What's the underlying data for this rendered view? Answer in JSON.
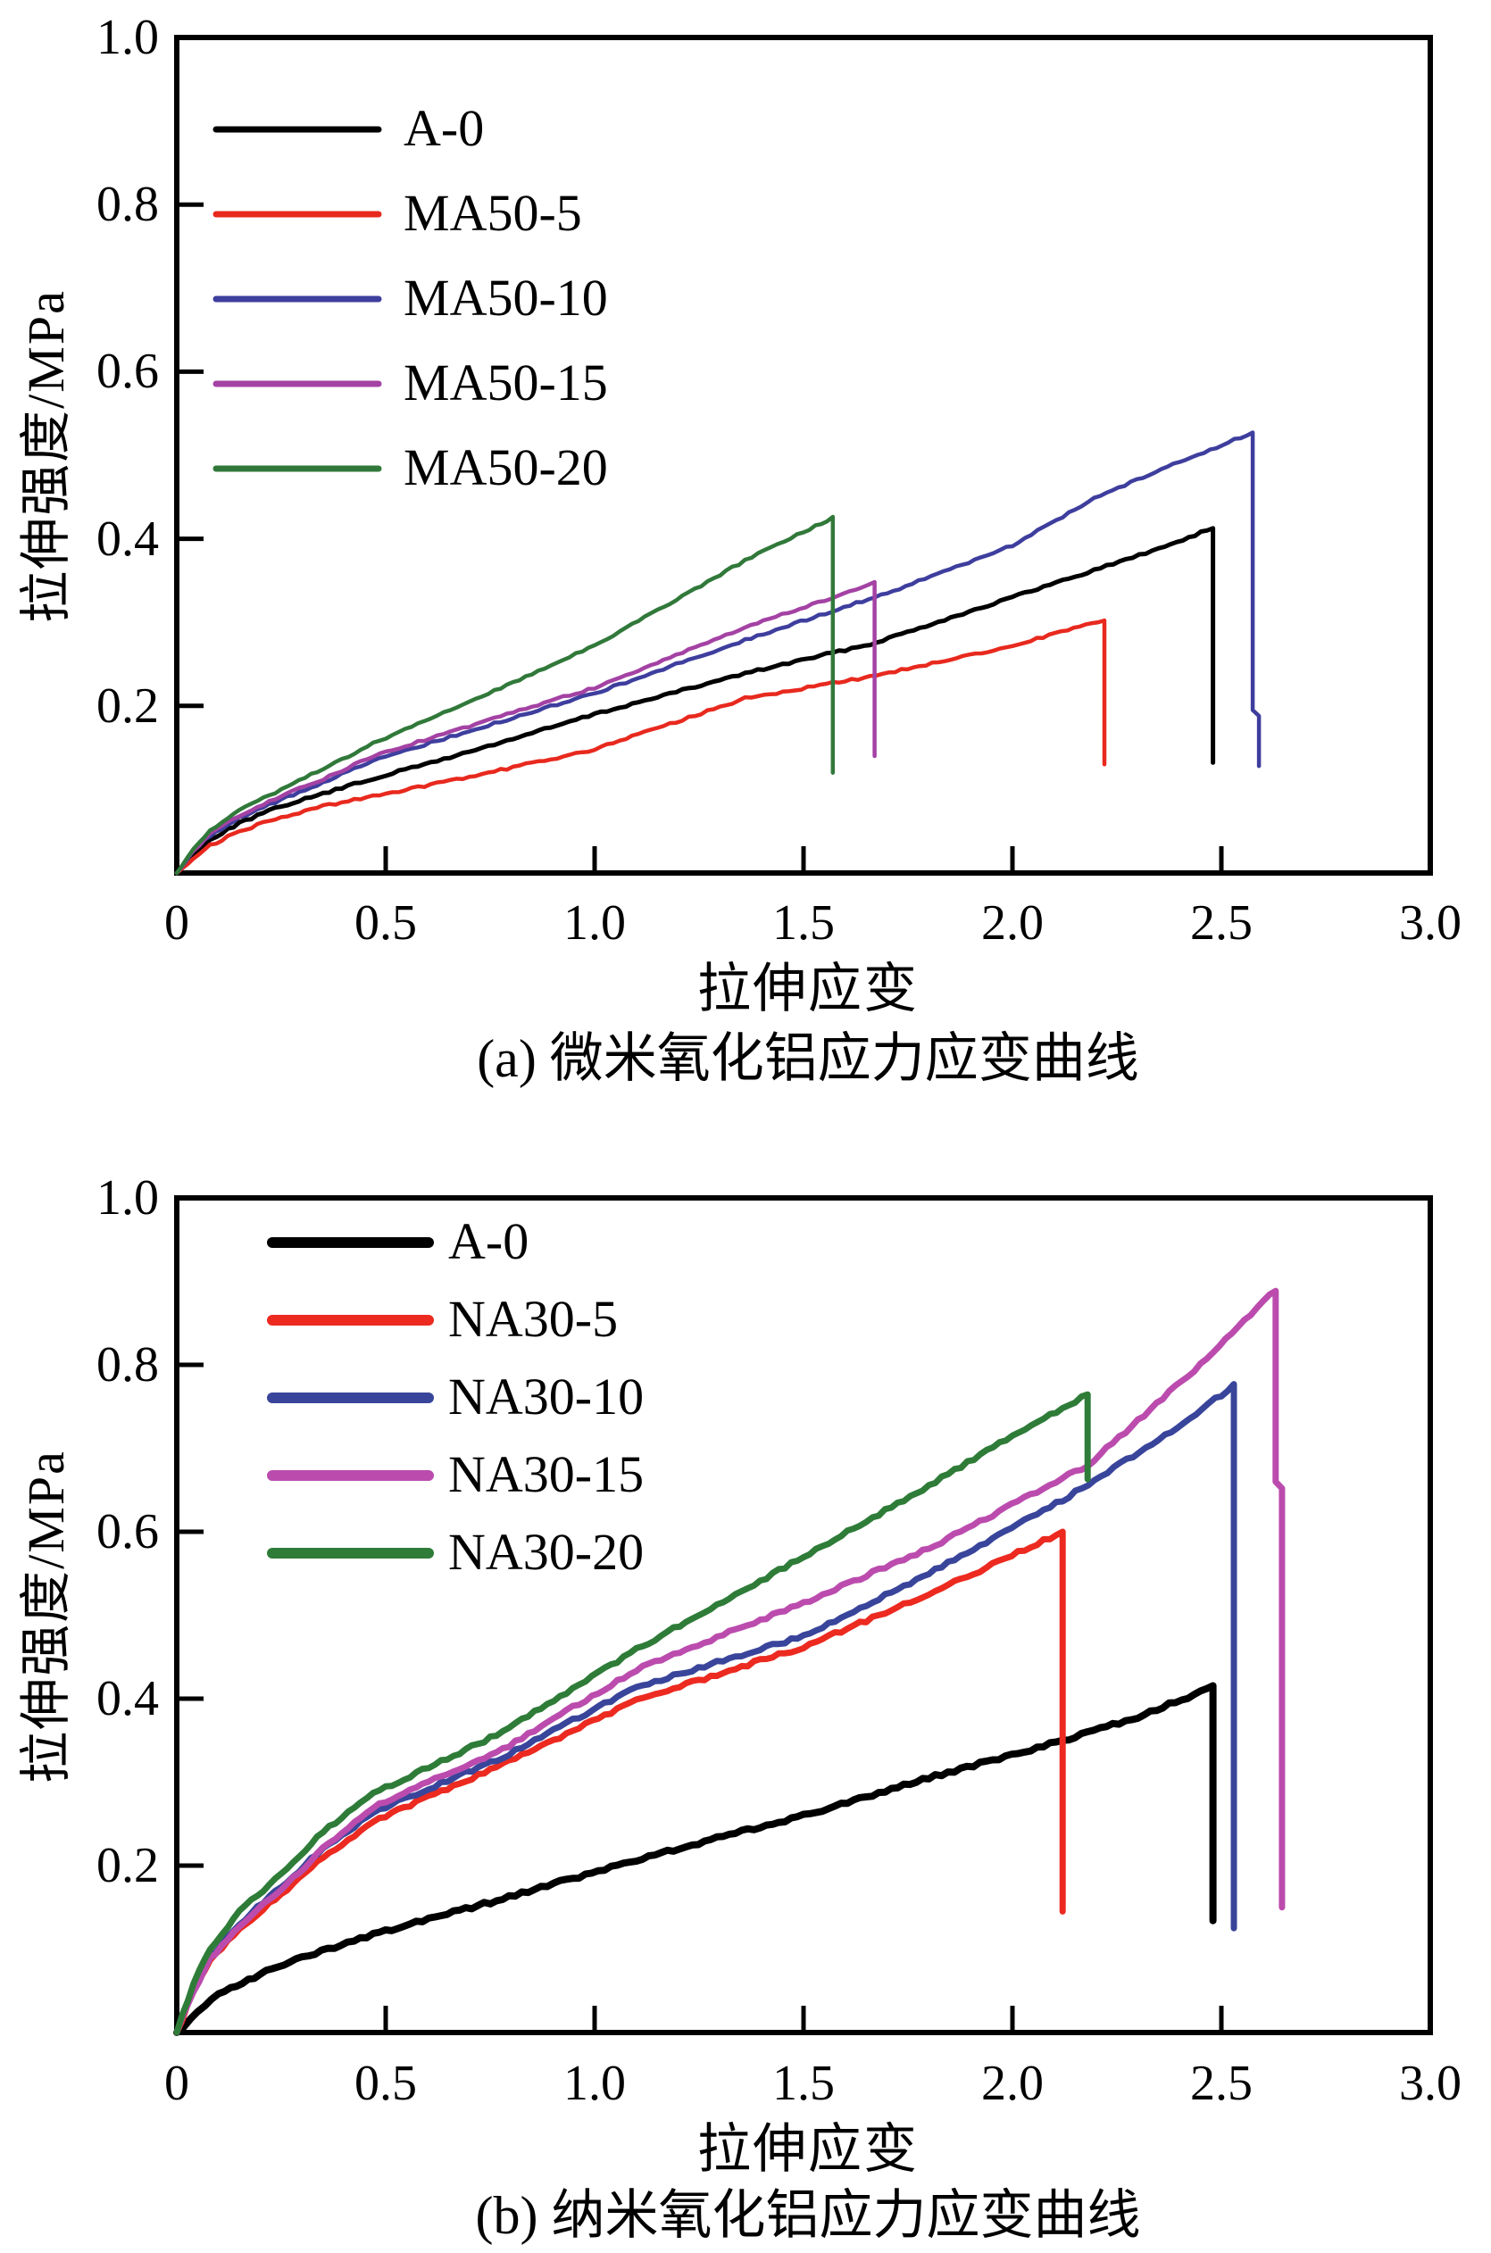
{
  "figure_title": "",
  "chart_data": [
    {
      "id": "a",
      "type": "line",
      "caption": "(a) 微米氧化铝应力应变曲线",
      "xlabel": "拉伸应变",
      "ylabel": "拉伸强度/MPa",
      "xlim": [
        0,
        3.0
      ],
      "ylim": [
        0,
        1.0
      ],
      "grid": false,
      "legend_position": "upper-left",
      "x_ticks": [
        0.5,
        1.0,
        1.5,
        2.0,
        2.5
      ],
      "y_ticks": [
        0.2,
        0.4,
        0.6,
        0.8
      ],
      "x_tick_labels": [
        {
          "v": 0,
          "t": "0"
        },
        {
          "v": 0.5,
          "t": "0.5"
        },
        {
          "v": 1.0,
          "t": "1.0"
        },
        {
          "v": 1.5,
          "t": "1.5"
        },
        {
          "v": 2.0,
          "t": "2.0"
        },
        {
          "v": 2.5,
          "t": "2.5"
        },
        {
          "v": 3.0,
          "t": "3.0"
        }
      ],
      "y_tick_labels": [
        {
          "v": 1.0,
          "t": "1.0"
        },
        {
          "v": 0.8,
          "t": "0.8"
        },
        {
          "v": 0.6,
          "t": "0.6"
        },
        {
          "v": 0.4,
          "t": "0.4"
        },
        {
          "v": 0.2,
          "t": "0.2"
        }
      ],
      "series": [
        {
          "name": "A-0",
          "color": "#000000",
          "w": 5,
          "peak_strain": 2.48,
          "peak_stress": 0.41,
          "points": [
            [
              0,
              0
            ],
            [
              0.04,
              0.022
            ],
            [
              0.08,
              0.04
            ],
            [
              0.15,
              0.06
            ],
            [
              0.25,
              0.08
            ],
            [
              0.35,
              0.095
            ],
            [
              0.47,
              0.113
            ],
            [
              0.7,
              0.145
            ],
            [
              1.0,
              0.19
            ],
            [
              1.36,
              0.239
            ],
            [
              1.66,
              0.274
            ],
            [
              2.0,
              0.33
            ],
            [
              2.21,
              0.365
            ],
            [
              2.35,
              0.388
            ],
            [
              2.48,
              0.413
            ],
            [
              2.48,
              0.132
            ]
          ]
        },
        {
          "name": "MA50-5",
          "color": "#e8291e",
          "w": 4.5,
          "peak_strain": 2.22,
          "peak_stress": 0.3,
          "points": [
            [
              0,
              0
            ],
            [
              0.04,
              0.018
            ],
            [
              0.08,
              0.033
            ],
            [
              0.15,
              0.05
            ],
            [
              0.25,
              0.067
            ],
            [
              0.35,
              0.08
            ],
            [
              0.47,
              0.092
            ],
            [
              0.7,
              0.115
            ],
            [
              1.0,
              0.148
            ],
            [
              1.36,
              0.209
            ],
            [
              1.66,
              0.235
            ],
            [
              2.0,
              0.272
            ],
            [
              2.22,
              0.303
            ],
            [
              2.22,
              0.13
            ]
          ]
        },
        {
          "name": "MA50-10",
          "color": "#3e3e9e",
          "w": 4.5,
          "peak_strain": 2.57,
          "peak_stress": 0.53,
          "points": [
            [
              0,
              0
            ],
            [
              0.04,
              0.026
            ],
            [
              0.08,
              0.045
            ],
            [
              0.15,
              0.066
            ],
            [
              0.25,
              0.088
            ],
            [
              0.35,
              0.108
            ],
            [
              0.47,
              0.135
            ],
            [
              0.7,
              0.17
            ],
            [
              1.0,
              0.215
            ],
            [
              1.36,
              0.279
            ],
            [
              1.7,
              0.335
            ],
            [
              2.0,
              0.392
            ],
            [
              2.21,
              0.452
            ],
            [
              2.4,
              0.492
            ],
            [
              2.575,
              0.527
            ],
            [
              2.575,
              0.195
            ],
            [
              2.59,
              0.188
            ],
            [
              2.59,
              0.128
            ]
          ]
        },
        {
          "name": "MA50-15",
          "color": "#a442a4",
          "w": 4.5,
          "peak_strain": 1.67,
          "peak_stress": 0.35,
          "points": [
            [
              0,
              0
            ],
            [
              0.04,
              0.027
            ],
            [
              0.08,
              0.047
            ],
            [
              0.15,
              0.069
            ],
            [
              0.25,
              0.092
            ],
            [
              0.35,
              0.112
            ],
            [
              0.47,
              0.14
            ],
            [
              0.7,
              0.176
            ],
            [
              1.0,
              0.222
            ],
            [
              1.36,
              0.294
            ],
            [
              1.55,
              0.326
            ],
            [
              1.67,
              0.347
            ],
            [
              1.67,
              0.14
            ]
          ]
        },
        {
          "name": "MA50-20",
          "color": "#31793a",
          "w": 4.5,
          "peak_strain": 1.57,
          "peak_stress": 0.42,
          "points": [
            [
              0,
              0
            ],
            [
              0.04,
              0.03
            ],
            [
              0.08,
              0.051
            ],
            [
              0.15,
              0.076
            ],
            [
              0.25,
              0.1
            ],
            [
              0.35,
              0.125
            ],
            [
              0.47,
              0.155
            ],
            [
              0.7,
              0.205
            ],
            [
              1.0,
              0.272
            ],
            [
              1.36,
              0.374
            ],
            [
              1.5,
              0.408
            ],
            [
              1.57,
              0.425
            ],
            [
              1.57,
              0.12
            ]
          ]
        }
      ]
    },
    {
      "id": "b",
      "type": "line",
      "caption": "(b) 纳米氧化铝应力应变曲线",
      "xlabel": "拉伸应变",
      "ylabel": "拉伸强度/MPa",
      "xlim": [
        0,
        3.0
      ],
      "ylim": [
        0,
        1.0
      ],
      "grid": false,
      "legend_position": "upper-left",
      "x_ticks": [
        0.5,
        1.0,
        1.5,
        2.0,
        2.5
      ],
      "y_ticks": [
        0.2,
        0.4,
        0.6,
        0.8
      ],
      "x_tick_labels": [
        {
          "v": 0,
          "t": "0"
        },
        {
          "v": 0.5,
          "t": "0.5"
        },
        {
          "v": 1.0,
          "t": "1.0"
        },
        {
          "v": 1.5,
          "t": "1.5"
        },
        {
          "v": 2.0,
          "t": "2.0"
        },
        {
          "v": 2.5,
          "t": "2.5"
        },
        {
          "v": 3.0,
          "t": "3.0"
        }
      ],
      "y_tick_labels": [
        {
          "v": 1.0,
          "t": "1.0"
        },
        {
          "v": 0.8,
          "t": "0.8"
        },
        {
          "v": 0.6,
          "t": "0.6"
        },
        {
          "v": 0.4,
          "t": "0.4"
        },
        {
          "v": 0.2,
          "t": "0.2"
        }
      ],
      "series": [
        {
          "name": "A-0",
          "color": "#000000",
          "w": 8,
          "peak_strain": 2.48,
          "peak_stress": 0.41,
          "points": [
            [
              0,
              0
            ],
            [
              0.05,
              0.025
            ],
            [
              0.1,
              0.045
            ],
            [
              0.2,
              0.07
            ],
            [
              0.3,
              0.09
            ],
            [
              0.47,
              0.118
            ],
            [
              0.78,
              0.16
            ],
            [
              1.1,
              0.207
            ],
            [
              1.5,
              0.26
            ],
            [
              1.8,
              0.305
            ],
            [
              2.12,
              0.35
            ],
            [
              2.3,
              0.378
            ],
            [
              2.48,
              0.414
            ],
            [
              2.48,
              0.134
            ]
          ]
        },
        {
          "name": "NA30-5",
          "color": "#ec2a20",
          "w": 7,
          "peak_strain": 2.12,
          "peak_stress": 0.6,
          "points": [
            [
              0,
              0
            ],
            [
              0.04,
              0.05
            ],
            [
              0.08,
              0.085
            ],
            [
              0.15,
              0.125
            ],
            [
              0.25,
              0.165
            ],
            [
              0.35,
              0.21
            ],
            [
              0.47,
              0.253
            ],
            [
              0.78,
              0.321
            ],
            [
              1.1,
              0.398
            ],
            [
              1.5,
              0.462
            ],
            [
              1.8,
              0.525
            ],
            [
              2.12,
              0.6
            ],
            [
              2.12,
              0.145
            ]
          ]
        },
        {
          "name": "NA30-10",
          "color": "#39459b",
          "w": 7,
          "peak_strain": 2.53,
          "peak_stress": 0.77,
          "points": [
            [
              0,
              0
            ],
            [
              0.04,
              0.055
            ],
            [
              0.08,
              0.09
            ],
            [
              0.15,
              0.13
            ],
            [
              0.25,
              0.175
            ],
            [
              0.35,
              0.22
            ],
            [
              0.47,
              0.264
            ],
            [
              0.78,
              0.33
            ],
            [
              1.1,
              0.414
            ],
            [
              1.5,
              0.475
            ],
            [
              1.8,
              0.55
            ],
            [
              2.12,
              0.638
            ],
            [
              2.35,
              0.71
            ],
            [
              2.53,
              0.775
            ],
            [
              2.53,
              0.125
            ]
          ]
        },
        {
          "name": "NA30-15",
          "color": "#bb4cae",
          "w": 7,
          "peak_strain": 2.63,
          "peak_stress": 0.89,
          "points": [
            [
              0,
              0
            ],
            [
              0.04,
              0.05
            ],
            [
              0.08,
              0.088
            ],
            [
              0.15,
              0.128
            ],
            [
              0.25,
              0.172
            ],
            [
              0.35,
              0.22
            ],
            [
              0.47,
              0.27
            ],
            [
              0.78,
              0.339
            ],
            [
              1.1,
              0.435
            ],
            [
              1.5,
              0.515
            ],
            [
              1.8,
              0.58
            ],
            [
              2.18,
              0.68
            ],
            [
              2.45,
              0.8
            ],
            [
              2.63,
              0.89
            ],
            [
              2.63,
              0.66
            ],
            [
              2.645,
              0.652
            ],
            [
              2.645,
              0.15
            ]
          ]
        },
        {
          "name": "NA30-20",
          "color": "#2e7c38",
          "w": 7,
          "peak_strain": 2.18,
          "peak_stress": 0.765,
          "points": [
            [
              0,
              0
            ],
            [
              0.04,
              0.06
            ],
            [
              0.08,
              0.1
            ],
            [
              0.15,
              0.145
            ],
            [
              0.25,
              0.19
            ],
            [
              0.35,
              0.24
            ],
            [
              0.47,
              0.286
            ],
            [
              0.78,
              0.36
            ],
            [
              1.1,
              0.459
            ],
            [
              1.5,
              0.57
            ],
            [
              1.8,
              0.655
            ],
            [
              2.0,
              0.715
            ],
            [
              2.18,
              0.765
            ],
            [
              2.18,
              0.663
            ]
          ]
        }
      ]
    }
  ]
}
